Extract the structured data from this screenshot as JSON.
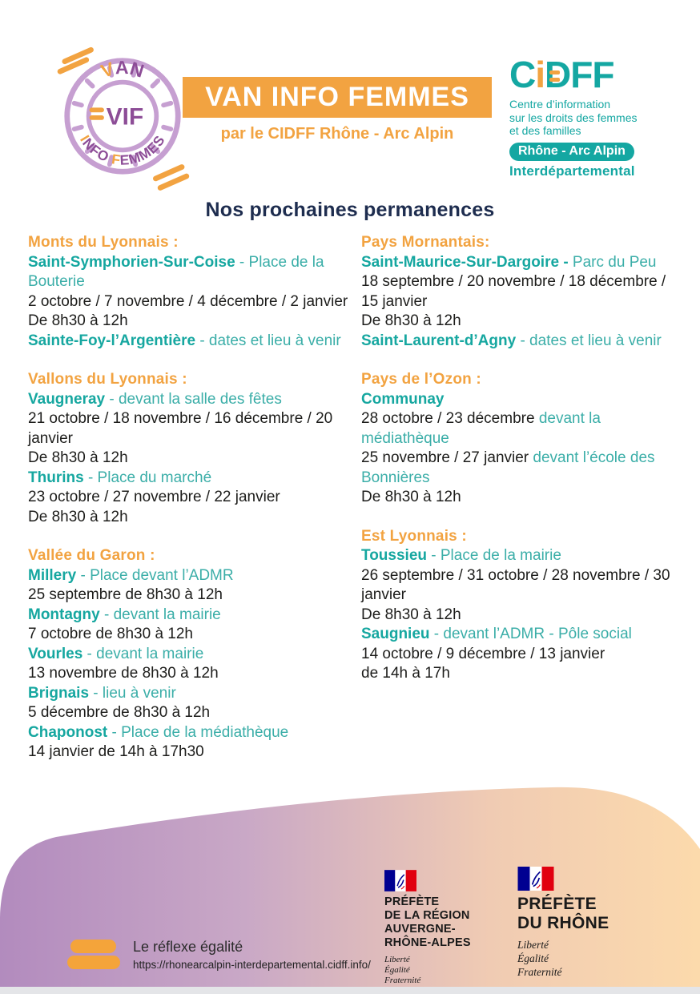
{
  "colors": {
    "orange": "#F2A341",
    "teal_bold": "#16A7A0",
    "teal": "#3BAEA8",
    "navy": "#1E2D4F",
    "dark_text": "#1D1D1B",
    "purple_ring": "#C69FD1",
    "purple_text": "#8D4D97",
    "blob_purple": "#B28BBE",
    "blob_peach": "#FCDAAC",
    "flag_blue": "#000091",
    "flag_red": "#E1000F"
  },
  "vif_logo": {
    "top_first": "V",
    "top_rest": "AN",
    "center_text": "VIF",
    "bottom_parts": [
      {
        "t": "I",
        "c": "#F2A341"
      },
      {
        "t": "NFO ",
        "c": "#8D4D97"
      },
      {
        "t": "F",
        "c": "#F2A341"
      },
      {
        "t": "EMMES",
        "c": "#8D4D97"
      }
    ]
  },
  "banner": {
    "title": "VAN INFO FEMMES",
    "subtitle": "par le CIDFF Rhône - Arc Alpin"
  },
  "cidff": {
    "acronym": "CiDFF",
    "acr_c": "C",
    "acr_i": "i",
    "acr_d": "D",
    "acr_rest": "FF",
    "desc_lines": [
      "Centre d’information",
      "sur les droits des femmes",
      "et des familles"
    ],
    "region_pill": "Rhône - Arc Alpin",
    "subregion": "Interdépartemental"
  },
  "page_title": "Nos prochaines permanences",
  "columns": [
    [
      {
        "heading": "Monts du Lyonnais :",
        "lines": [
          [
            {
              "t": "Saint-Symphorien-Sur-Coise",
              "s": "tb"
            },
            {
              "t": " - Place de la Bouterie",
              "s": "t"
            }
          ],
          [
            {
              "t": "2 octobre / 7 novembre / 4 décembre / 2 janvier",
              "s": "d"
            }
          ],
          [
            {
              "t": "De 8h30 à 12h",
              "s": "d"
            }
          ],
          [
            {
              "t": "Sainte-Foy-l’Argentière",
              "s": "tb"
            },
            {
              "t": " - dates et lieu à venir",
              "s": "t"
            }
          ]
        ]
      },
      {
        "heading": "Vallons du Lyonnais :",
        "lines": [
          [
            {
              "t": "Vaugneray",
              "s": "tb"
            },
            {
              "t": " - devant la salle des fêtes",
              "s": "t"
            }
          ],
          [
            {
              "t": "21 octobre / 18 novembre / 16 décembre / 20 janvier",
              "s": "d"
            }
          ],
          [
            {
              "t": "De 8h30 à 12h",
              "s": "d"
            }
          ],
          [
            {
              "t": "Thurins",
              "s": "tb"
            },
            {
              "t": " - Place du marché",
              "s": "t"
            }
          ],
          [
            {
              "t": "23 octobre / 27 novembre / 22 janvier",
              "s": "d"
            }
          ],
          [
            {
              "t": "De 8h30 à 12h",
              "s": "d"
            }
          ]
        ]
      },
      {
        "heading": "Vallée du Garon :",
        "lines": [
          [
            {
              "t": "Millery",
              "s": "tb"
            },
            {
              "t": " - Place devant l’ADMR",
              "s": "t"
            }
          ],
          [
            {
              "t": "25 septembre de 8h30 à 12h",
              "s": "d"
            }
          ],
          [
            {
              "t": "Montagny",
              "s": "tb"
            },
            {
              "t": " - devant la mairie",
              "s": "t"
            }
          ],
          [
            {
              "t": "7 octobre de 8h30 à 12h",
              "s": "d"
            }
          ],
          [
            {
              "t": "Vourles",
              "s": "tb"
            },
            {
              "t": " - devant la mairie",
              "s": "t"
            }
          ],
          [
            {
              "t": "13 novembre de 8h30 à 12h",
              "s": "d"
            }
          ],
          [
            {
              "t": "Brignais",
              "s": "tb"
            },
            {
              "t": " - lieu à venir",
              "s": "t"
            }
          ],
          [
            {
              "t": "5 décembre de 8h30 à 12h",
              "s": "d"
            }
          ],
          [
            {
              "t": "Chaponost",
              "s": "tb"
            },
            {
              "t": " - Place de la médiathèque",
              "s": "t"
            }
          ],
          [
            {
              "t": "14 janvier de 14h à 17h30",
              "s": "d"
            }
          ]
        ]
      }
    ],
    [
      {
        "heading": "Pays Mornantais:",
        "lines": [
          [
            {
              "t": "Saint-Maurice-Sur-Dargoire -",
              "s": "tb"
            },
            {
              "t": " Parc du Peu",
              "s": "t"
            }
          ],
          [
            {
              "t": "18 septembre / 20 novembre / 18 décembre / 15 janvier",
              "s": "d"
            }
          ],
          [
            {
              "t": "De 8h30 à 12h",
              "s": "d"
            }
          ],
          [
            {
              "t": "Saint-Laurent-d’Agny",
              "s": "tb"
            },
            {
              "t": " - dates et lieu à venir",
              "s": "t"
            }
          ]
        ]
      },
      {
        "heading": "Pays de l’Ozon :",
        "lines": [
          [
            {
              "t": "Communay",
              "s": "tb"
            }
          ],
          [
            {
              "t": "28 octobre / 23 décembre ",
              "s": "d"
            },
            {
              "t": "devant la médiathèque",
              "s": "t"
            }
          ],
          [
            {
              "t": "25 novembre /  27 janvier ",
              "s": "d"
            },
            {
              "t": "devant l’école des Bonnières",
              "s": "t"
            }
          ],
          [
            {
              "t": "De 8h30 à 12h",
              "s": "d"
            }
          ]
        ]
      },
      {
        "heading": "Est Lyonnais :",
        "lines": [
          [
            {
              "t": "Toussieu",
              "s": "tb"
            },
            {
              "t": " - Place de la mairie",
              "s": "t"
            }
          ],
          [
            {
              "t": "26 septembre / 31 octobre / 28 novembre / 30 janvier",
              "s": "d"
            }
          ],
          [
            {
              "t": "De 8h30 à 12h",
              "s": "d"
            }
          ],
          [
            {
              "t": "Saugnieu",
              "s": "tb"
            },
            {
              "t": " - devant l’ADMR - Pôle social",
              "s": "t"
            }
          ],
          [
            {
              "t": "14 octobre / 9 décembre / 13 janvier",
              "s": "d"
            }
          ],
          [
            {
              "t": "de 14h à 17h",
              "s": "d"
            }
          ]
        ]
      }
    ]
  ],
  "footer": {
    "tagline": "Le réflexe égalité",
    "url": "https://rhonearcalpin-interdepartemental.cidff.info/",
    "logos": [
      {
        "lines": [
          "PRÉFÈTE",
          "DE LA RÉGION",
          "AUVERGNE-",
          "RHÔNE-ALPES"
        ],
        "motto": [
          "Liberté",
          "Égalité",
          "Fraternité"
        ]
      },
      {
        "lines": [
          "PRÉFÈTE",
          "DU RHÔNE"
        ],
        "motto": [
          "Liberté",
          "Égalité",
          "Fraternité"
        ]
      }
    ]
  }
}
